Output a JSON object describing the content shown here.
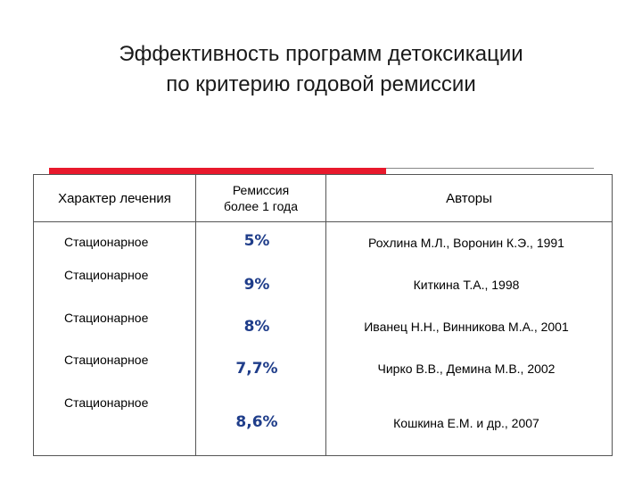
{
  "title": {
    "line1": "Эффективность программ детоксикации",
    "line2": "по критерию годовой ремиссии"
  },
  "colors": {
    "accent": "#e8192c",
    "percent_text": "#1f3d8a"
  },
  "table": {
    "headers": {
      "treatment": "Характер лечения",
      "remission_line1": "Ремиссия",
      "remission_line2": "более 1 года",
      "authors": "Авторы"
    },
    "rows": [
      {
        "treatment": "Стационарное",
        "remission": "5%",
        "authors": "Рохлина М.Л., Воронин К.Э., 1991"
      },
      {
        "treatment": "Стационарное",
        "remission": "9%",
        "authors": "Киткина Т.А., 1998"
      },
      {
        "treatment": "Стационарное",
        "remission": "8%",
        "authors": "Иванец Н.Н., Винникова М.А., 2001"
      },
      {
        "treatment": "Стационарное",
        "remission": "7,7%",
        "authors": "Чирко В.В., Демина М.В., 2002"
      },
      {
        "treatment": "Стационарное",
        "remission": "8,6%",
        "authors": "Кошкина Е.М. и др., 2007"
      }
    ]
  }
}
